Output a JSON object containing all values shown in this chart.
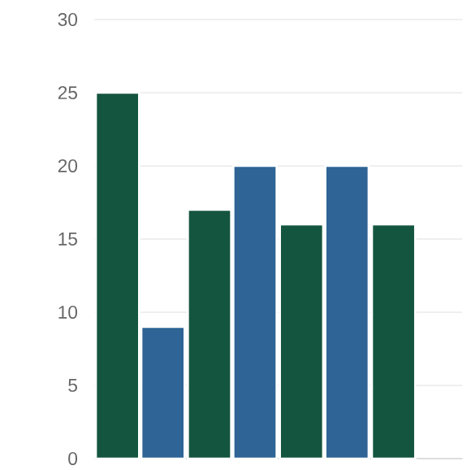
{
  "chart_data": {
    "type": "bar",
    "categories": [
      null,
      null,
      null,
      null
    ],
    "series": [
      {
        "color": "#14553f",
        "values": [
          25,
          17,
          16,
          16
        ]
      },
      {
        "color": "#2e6496",
        "values": [
          9,
          20,
          20,
          null
        ]
      }
    ],
    "ylim": [
      0,
      30
    ],
    "yticks": [
      0,
      5,
      10,
      15,
      20,
      25,
      30
    ],
    "grid": "y"
  }
}
